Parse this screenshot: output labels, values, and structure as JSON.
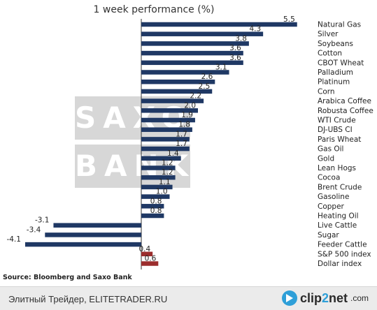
{
  "watermark": {
    "line1": "SAXO",
    "line2": "BANK"
  },
  "footer": {
    "site": "Элитный Трейдер, ELITETRADER.RU",
    "logo_part1": "clip",
    "logo_part2": "2",
    "logo_part3": "net",
    "logo_suffix": ".com"
  },
  "chart_data": {
    "type": "bar",
    "orientation": "horizontal",
    "title": "1 week performance (%)",
    "source": "Source: Bloomberg and Saxo Bank",
    "categories": [
      "Natural Gas",
      "Silver",
      "Soybeans",
      "Cotton",
      "CBOT Wheat",
      "Palladium",
      "Platinum",
      "Corn",
      "Arabica Coffee",
      "Robusta Coffee",
      "WTI Crude",
      "DJ-UBS CI",
      "Paris Wheat",
      "Gas Oil",
      "Gold",
      "Lean Hogs",
      "Cocoa",
      "Brent Crude",
      "Gasoline",
      "Copper",
      "Heating Oil",
      "Live Cattle",
      "Sugar",
      "Feeder Cattle",
      "S&P 500 index",
      "Dollar index"
    ],
    "values": [
      5.5,
      4.3,
      3.8,
      3.6,
      3.6,
      3.1,
      2.6,
      2.5,
      2.2,
      2.0,
      1.9,
      1.8,
      1.7,
      1.7,
      1.4,
      1.2,
      1.2,
      1.1,
      1.0,
      0.8,
      0.8,
      -3.1,
      -3.4,
      -4.1,
      0.4,
      0.6
    ],
    "value_labels": [
      "5.5",
      "4.3",
      "3.8",
      "3.6",
      "3.6",
      "3.1",
      "2.6",
      "2.5",
      "2.2",
      "2.0",
      "1.9",
      "1.8",
      "1.7",
      "1.7",
      "1.4",
      "1.2",
      "1.2",
      "1.1",
      "1.0",
      "0.8",
      "0.8",
      "-3.1",
      "-3.4",
      "-4.1",
      "0.4",
      "0.6"
    ],
    "highlight_categories": [
      "S&P 500 index",
      "Dollar index"
    ],
    "colors": {
      "bar": "#1f3864",
      "highlight": "#9b2d2d",
      "axis": "#333333"
    },
    "grid": false,
    "legend": "none"
  }
}
